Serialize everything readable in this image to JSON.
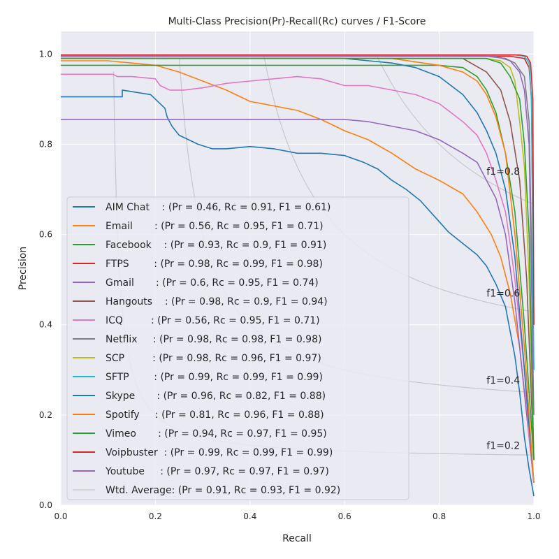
{
  "chart_data": {
    "type": "line",
    "title": "Multi-Class Precision(Pr)-Recall(Rc) curves / F1-Score",
    "xlabel": "Recall",
    "ylabel": "Precision",
    "xlim": [
      0.0,
      1.0
    ],
    "ylim": [
      0.0,
      1.05
    ],
    "xticks": [
      "0.0",
      "0.2",
      "0.4",
      "0.6",
      "0.8",
      "1.0"
    ],
    "yticks": [
      "0.0",
      "0.2",
      "0.4",
      "0.6",
      "0.8",
      "1.0"
    ],
    "grid": true,
    "legend_position": "lower-left",
    "iso_f1": [
      {
        "f1": 0.2,
        "label": "f1=0.2"
      },
      {
        "f1": 0.4,
        "label": "f1=0.4"
      },
      {
        "f1": 0.6,
        "label": "f1=0.6"
      },
      {
        "f1": 0.8,
        "label": "f1=0.8"
      }
    ],
    "series": [
      {
        "name": "AIM Chat",
        "legend": "AIM Chat    : (Pr = 0.46, Rc = 0.91, F1 = 0.61)",
        "color": "#1f77b4",
        "x": [
          0,
          0.13,
          0.13,
          0.16,
          0.19,
          0.2,
          0.22,
          0.225,
          0.23,
          0.235,
          0.25,
          0.29,
          0.32,
          0.35,
          0.4,
          0.45,
          0.5,
          0.55,
          0.6,
          0.64,
          0.67,
          0.7,
          0.73,
          0.76,
          0.79,
          0.82,
          0.85,
          0.88,
          0.9,
          0.92,
          0.94,
          0.96,
          0.97,
          0.98,
          0.99,
          1.0
        ],
        "y": [
          0.905,
          0.905,
          0.92,
          0.915,
          0.91,
          0.9,
          0.88,
          0.86,
          0.85,
          0.84,
          0.82,
          0.8,
          0.79,
          0.79,
          0.795,
          0.79,
          0.78,
          0.78,
          0.775,
          0.76,
          0.745,
          0.72,
          0.7,
          0.675,
          0.64,
          0.605,
          0.58,
          0.555,
          0.53,
          0.49,
          0.44,
          0.33,
          0.25,
          0.15,
          0.08,
          0.02
        ]
      },
      {
        "name": "Email",
        "legend": "Email       : (Pr = 0.56, Rc = 0.95, F1 = 0.71)",
        "color": "#ff7f0e",
        "x": [
          0,
          0.1,
          0.15,
          0.2,
          0.25,
          0.3,
          0.35,
          0.4,
          0.45,
          0.5,
          0.55,
          0.6,
          0.65,
          0.7,
          0.75,
          0.8,
          0.85,
          0.88,
          0.91,
          0.93,
          0.95,
          0.97,
          0.985,
          1.0
        ],
        "y": [
          0.985,
          0.985,
          0.98,
          0.975,
          0.96,
          0.94,
          0.92,
          0.895,
          0.885,
          0.875,
          0.855,
          0.83,
          0.81,
          0.78,
          0.745,
          0.72,
          0.69,
          0.65,
          0.6,
          0.55,
          0.47,
          0.35,
          0.2,
          0.05
        ]
      },
      {
        "name": "Facebook",
        "legend": "Facebook    : (Pr = 0.93, Rc = 0.9, F1 = 0.91)",
        "color": "#2ca02c",
        "x": [
          0,
          0.8,
          0.85,
          0.88,
          0.9,
          0.92,
          0.94,
          0.96,
          0.98,
          1.0
        ],
        "y": [
          0.975,
          0.975,
          0.97,
          0.95,
          0.92,
          0.87,
          0.78,
          0.65,
          0.4,
          0.1
        ]
      },
      {
        "name": "FTPS",
        "legend": "FTPS        : (Pr = 0.98, Rc = 0.99, F1 = 0.98)",
        "color": "#d62728",
        "x": [
          0,
          0.95,
          0.98,
          0.99,
          0.995,
          1.0
        ],
        "y": [
          0.995,
          0.995,
          0.99,
          0.97,
          0.9,
          0.4
        ]
      },
      {
        "name": "Gmail",
        "legend": "Gmail       : (Pr = 0.6, Rc = 0.95, F1 = 0.74)",
        "color": "#9467bd",
        "x": [
          0,
          0.6,
          0.65,
          0.7,
          0.75,
          0.8,
          0.85,
          0.88,
          0.9,
          0.92,
          0.94,
          0.96,
          0.98,
          1.0
        ],
        "y": [
          0.855,
          0.855,
          0.85,
          0.84,
          0.83,
          0.81,
          0.78,
          0.76,
          0.72,
          0.68,
          0.6,
          0.45,
          0.25,
          0.05
        ]
      },
      {
        "name": "Hangouts",
        "legend": "Hangouts    : (Pr = 0.98, Rc = 0.9, F1 = 0.94)",
        "color": "#8c564b",
        "x": [
          0,
          0.85,
          0.9,
          0.93,
          0.95,
          0.97,
          0.985,
          1.0
        ],
        "y": [
          0.99,
          0.99,
          0.96,
          0.92,
          0.85,
          0.72,
          0.5,
          0.1
        ]
      },
      {
        "name": "ICQ",
        "legend": "ICQ         : (Pr = 0.56, Rc = 0.95, F1 = 0.71)",
        "color": "#e377c2",
        "x": [
          0,
          0.11,
          0.12,
          0.15,
          0.2,
          0.21,
          0.23,
          0.26,
          0.3,
          0.35,
          0.4,
          0.45,
          0.5,
          0.55,
          0.6,
          0.65,
          0.7,
          0.75,
          0.8,
          0.85,
          0.88,
          0.9,
          0.92,
          0.94,
          0.95,
          0.96,
          0.97,
          0.98,
          0.99,
          1.0
        ],
        "y": [
          0.955,
          0.955,
          0.95,
          0.95,
          0.945,
          0.93,
          0.92,
          0.92,
          0.925,
          0.935,
          0.94,
          0.945,
          0.95,
          0.945,
          0.93,
          0.93,
          0.92,
          0.91,
          0.89,
          0.85,
          0.82,
          0.78,
          0.72,
          0.65,
          0.58,
          0.5,
          0.4,
          0.3,
          0.15,
          0.05
        ]
      },
      {
        "name": "Netflix",
        "legend": "Netflix     : (Pr = 0.98, Rc = 0.98, F1 = 0.98)",
        "color": "#7f7f7f",
        "x": [
          0,
          0.9,
          0.94,
          0.96,
          0.98,
          0.99,
          1.0
        ],
        "y": [
          0.995,
          0.995,
          0.99,
          0.98,
          0.95,
          0.85,
          0.3
        ]
      },
      {
        "name": "SCP",
        "legend": "SCP         : (Pr = 0.98, Rc = 0.96, F1 = 0.97)",
        "color": "#bcbd22",
        "x": [
          0,
          0.9,
          0.93,
          0.95,
          0.96,
          0.97,
          0.98,
          0.99,
          1.0
        ],
        "y": [
          0.99,
          0.99,
          0.985,
          0.97,
          0.94,
          0.85,
          0.75,
          0.5,
          0.1
        ]
      },
      {
        "name": "SFTP",
        "legend": "SFTP        : (Pr = 0.99, Rc = 0.99, F1 = 0.99)",
        "color": "#17becf",
        "x": [
          0,
          0.96,
          0.98,
          0.99,
          0.995,
          1.0
        ],
        "y": [
          0.998,
          0.998,
          0.995,
          0.98,
          0.9,
          0.3
        ]
      },
      {
        "name": "Skype",
        "legend": "Skype       : (Pr = 0.96, Rc = 0.82, F1 = 0.88)",
        "color": "#1f77b4",
        "x": [
          0,
          0.6,
          0.7,
          0.75,
          0.8,
          0.85,
          0.88,
          0.9,
          0.92,
          0.94,
          0.96,
          0.98,
          1.0
        ],
        "y": [
          0.99,
          0.99,
          0.98,
          0.97,
          0.95,
          0.91,
          0.87,
          0.83,
          0.78,
          0.7,
          0.55,
          0.3,
          0.05
        ]
      },
      {
        "name": "Spotify",
        "legend": "Spotify     : (Pr = 0.81, Rc = 0.96, F1 = 0.88)",
        "color": "#ff7f0e",
        "x": [
          0,
          0.7,
          0.8,
          0.85,
          0.88,
          0.9,
          0.92,
          0.94,
          0.96,
          0.98,
          1.0
        ],
        "y": [
          0.99,
          0.99,
          0.975,
          0.96,
          0.94,
          0.91,
          0.86,
          0.78,
          0.6,
          0.35,
          0.05
        ]
      },
      {
        "name": "Vimeo",
        "legend": "Vimeo       : (Pr = 0.94, Rc = 0.97, F1 = 0.95)",
        "color": "#2ca02c",
        "x": [
          0,
          0.9,
          0.93,
          0.95,
          0.97,
          0.98,
          0.99,
          1.0
        ],
        "y": [
          0.99,
          0.99,
          0.98,
          0.95,
          0.9,
          0.8,
          0.6,
          0.1
        ]
      },
      {
        "name": "Voipbuster",
        "legend": "Voipbuster  : (Pr = 0.99, Rc = 0.99, F1 = 0.99)",
        "color": "#d62728",
        "x": [
          0,
          0.97,
          0.985,
          0.993,
          0.998,
          1.0
        ],
        "y": [
          0.998,
          0.998,
          0.995,
          0.98,
          0.9,
          0.4
        ]
      },
      {
        "name": "Youtube",
        "legend": "Youtube     : (Pr = 0.97, Rc = 0.97, F1 = 0.97)",
        "color": "#9467bd",
        "x": [
          0,
          0.92,
          0.95,
          0.97,
          0.98,
          0.99,
          1.0
        ],
        "y": [
          0.995,
          0.995,
          0.985,
          0.96,
          0.92,
          0.8,
          0.2
        ]
      },
      {
        "name": "Wtd. Average",
        "legend": "Wtd. Average: (Pr = 0.91, Rc = 0.93, F1 = 0.92)",
        "color": "#d3d3d3",
        "x": [],
        "y": []
      }
    ]
  }
}
